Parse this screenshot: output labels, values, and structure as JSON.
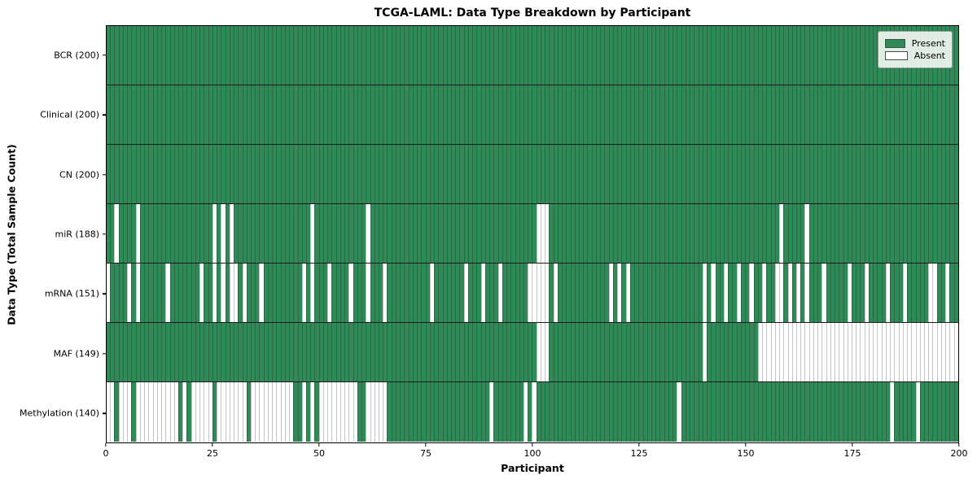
{
  "header": {
    "title": "TCGA-LAML: Data Type Breakdown by Participant"
  },
  "axes": {
    "xlabel": "Participant",
    "ylabel": "Data Type (Total Sample Count)"
  },
  "legend": {
    "present_label": "Present",
    "absent_label": "Absent"
  },
  "colors": {
    "present": "#2e8b57",
    "absent": "#ffffff",
    "row_divider": "#1a1a1a",
    "plot_border": "#000000"
  },
  "chart_data": {
    "type": "heatmap",
    "title": "TCGA-LAML: Data Type Breakdown by Participant",
    "xlabel": "Participant",
    "ylabel": "Data Type (Total Sample Count)",
    "x_ticks": [
      0,
      25,
      50,
      75,
      100,
      125,
      150,
      175,
      200
    ],
    "xlim": [
      0,
      200
    ],
    "n_participants": 200,
    "legend_position": "upper right",
    "grid": false,
    "value_legend": {
      "present": "Present",
      "absent": "Absent"
    },
    "rows": [
      {
        "label": "BCR (200)",
        "data_type": "BCR",
        "present_count": 200,
        "absent_participants": []
      },
      {
        "label": "Clinical (200)",
        "data_type": "Clinical",
        "present_count": 200,
        "absent_participants": []
      },
      {
        "label": "CN (200)",
        "data_type": "CN",
        "present_count": 200,
        "absent_participants": []
      },
      {
        "label": "miR (188)",
        "data_type": "miR",
        "present_count": 188,
        "absent_participants": [
          2,
          7,
          25,
          27,
          29,
          48,
          61,
          101,
          102,
          103,
          158,
          164
        ]
      },
      {
        "label": "mRNA (151)",
        "data_type": "mRNA",
        "present_count": 151,
        "absent_participants": [
          0,
          5,
          7,
          14,
          22,
          25,
          27,
          29,
          30,
          32,
          36,
          46,
          48,
          52,
          57,
          61,
          65,
          76,
          84,
          88,
          92,
          99,
          100,
          101,
          102,
          103,
          105,
          118,
          120,
          122,
          140,
          142,
          145,
          148,
          151,
          154,
          157,
          158,
          160,
          162,
          164,
          168,
          174,
          178,
          183,
          187,
          193,
          194,
          197
        ]
      },
      {
        "label": "MAF (149)",
        "data_type": "MAF",
        "present_count": 149,
        "absent_participants": [
          101,
          102,
          103,
          140,
          153,
          154,
          155,
          156,
          157,
          158,
          159,
          160,
          161,
          162,
          163,
          164,
          165,
          166,
          167,
          168,
          169,
          170,
          171,
          172,
          173,
          174,
          175,
          176,
          177,
          178,
          179,
          180,
          181,
          182,
          183,
          184,
          185,
          186,
          187,
          188,
          189,
          190,
          191,
          192,
          193,
          194,
          195,
          196,
          197,
          198,
          199
        ]
      },
      {
        "label": "Methylation (140)",
        "data_type": "Methylation",
        "present_count": 140,
        "absent_participants": [
          0,
          1,
          3,
          4,
          5,
          7,
          8,
          9,
          10,
          11,
          12,
          13,
          14,
          15,
          16,
          18,
          20,
          21,
          22,
          23,
          24,
          26,
          27,
          28,
          29,
          30,
          31,
          32,
          34,
          35,
          36,
          37,
          38,
          39,
          40,
          41,
          42,
          43,
          46,
          48,
          50,
          51,
          52,
          53,
          54,
          55,
          56,
          57,
          58,
          61,
          62,
          63,
          64,
          65,
          90,
          98,
          100,
          134,
          184,
          190
        ]
      }
    ]
  }
}
